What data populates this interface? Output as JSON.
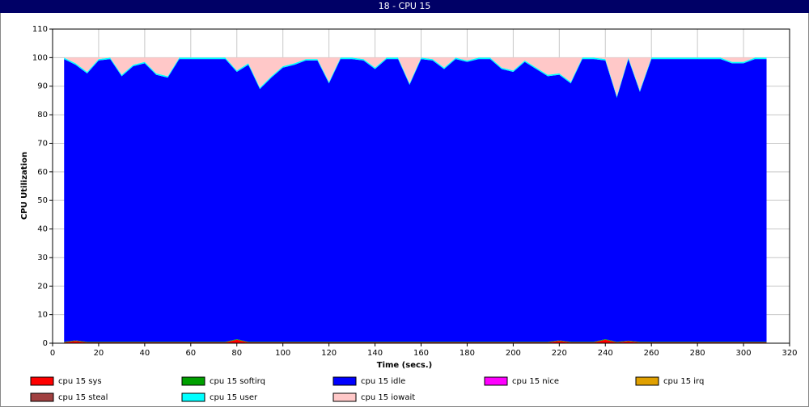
{
  "chart_data": {
    "type": "stacked_area",
    "title": "18 - CPU 15",
    "x_label": "Time (secs.)",
    "y_label": "CPU Utilization",
    "xlim": [
      0,
      320
    ],
    "xticks": [
      0,
      20,
      40,
      60,
      80,
      100,
      120,
      140,
      160,
      180,
      200,
      220,
      240,
      260,
      280,
      300,
      320
    ],
    "ylim": [
      0,
      110
    ],
    "yticks": [
      0,
      10,
      20,
      30,
      40,
      50,
      60,
      70,
      80,
      90,
      100,
      110
    ],
    "grid": true,
    "x": [
      5,
      10,
      15,
      20,
      25,
      30,
      35,
      40,
      45,
      50,
      55,
      60,
      65,
      70,
      75,
      80,
      85,
      90,
      95,
      100,
      105,
      110,
      115,
      120,
      125,
      130,
      135,
      140,
      145,
      150,
      155,
      160,
      165,
      170,
      175,
      180,
      185,
      190,
      195,
      200,
      205,
      210,
      215,
      220,
      225,
      230,
      235,
      240,
      245,
      250,
      255,
      260,
      265,
      270,
      275,
      280,
      285,
      290,
      295,
      300,
      305,
      310
    ],
    "series": [
      {
        "name": "cpu 15 sys",
        "color": "#ff0000",
        "values": [
          0.3,
          0.8,
          0.3,
          0.3,
          0.3,
          0.3,
          0.3,
          0.3,
          0.3,
          0.3,
          0.3,
          0.3,
          0.3,
          0.3,
          0.3,
          1.2,
          0.3,
          0.3,
          0.3,
          0.3,
          0.3,
          0.3,
          0.3,
          0.3,
          0.3,
          0.3,
          0.3,
          0.3,
          0.3,
          0.3,
          0.3,
          0.3,
          0.3,
          0.3,
          0.3,
          0.3,
          0.3,
          0.3,
          0.3,
          0.3,
          0.3,
          0.3,
          0.3,
          0.8,
          0.3,
          0.3,
          0.3,
          1.2,
          0.3,
          0.7,
          0.3,
          0.3,
          0.3,
          0.3,
          0.3,
          0.3,
          0.3,
          0.3,
          0.3,
          0.3,
          0.3,
          0.3
        ]
      },
      {
        "name": "cpu 15 softirq",
        "color": "#00a000",
        "values": [
          0.2,
          0.2,
          0.2,
          0.2,
          0.2,
          0.2,
          0.2,
          0.2,
          0.2,
          0.2,
          0.2,
          0.2,
          0.2,
          0.2,
          0.2,
          0.2,
          0.2,
          0.2,
          0.2,
          0.2,
          0.2,
          0.2,
          0.2,
          0.2,
          0.2,
          0.2,
          0.2,
          0.2,
          0.2,
          0.2,
          0.2,
          0.2,
          0.2,
          0.2,
          0.2,
          0.2,
          0.2,
          0.2,
          0.2,
          0.2,
          0.2,
          0.2,
          0.2,
          0.2,
          0.2,
          0.2,
          0.2,
          0.2,
          0.2,
          0.2,
          0.2,
          0.2,
          0.2,
          0.2,
          0.2,
          0.2,
          0.2,
          0.2,
          0.2,
          0.2,
          0.2,
          0.2
        ]
      },
      {
        "name": "cpu 15 idle",
        "color": "#0000ff",
        "values": [
          99.0,
          96.5,
          94.0,
          98.5,
          99.0,
          93.0,
          96.5,
          97.5,
          93.5,
          92.5,
          99.0,
          99.0,
          99.0,
          99.0,
          99.0,
          93.6,
          97.0,
          88.5,
          92.5,
          96.0,
          97.0,
          98.5,
          98.5,
          90.5,
          99.0,
          99.0,
          98.5,
          95.5,
          99.0,
          99.0,
          90.0,
          99.0,
          98.5,
          95.5,
          99.0,
          98.0,
          99.0,
          99.0,
          95.5,
          94.5,
          98.0,
          95.5,
          93.0,
          93.0,
          90.5,
          99.0,
          99.0,
          97.6,
          85.5,
          98.6,
          87.5,
          99.0,
          99.0,
          99.0,
          99.0,
          99.0,
          99.0,
          99.0,
          97.5,
          97.5,
          99.0,
          99.0
        ]
      },
      {
        "name": "cpu 15 nice",
        "color": "#ff00ff",
        "values": [
          0,
          0,
          0,
          0,
          0,
          0,
          0,
          0,
          0,
          0,
          0,
          0,
          0,
          0,
          0,
          0,
          0,
          0,
          0,
          0,
          0,
          0,
          0,
          0,
          0,
          0,
          0,
          0,
          0,
          0,
          0,
          0,
          0,
          0,
          0,
          0,
          0,
          0,
          0,
          0,
          0,
          0,
          0,
          0,
          0,
          0,
          0,
          0,
          0,
          0,
          0,
          0,
          0,
          0,
          0,
          0,
          0,
          0,
          0,
          0,
          0,
          0
        ]
      },
      {
        "name": "cpu 15 irq",
        "color": "#e0a000",
        "values": [
          0,
          0,
          0,
          0,
          0,
          0,
          0,
          0,
          0,
          0,
          0,
          0,
          0,
          0,
          0,
          0,
          0,
          0,
          0,
          0,
          0,
          0,
          0,
          0,
          0,
          0,
          0,
          0,
          0,
          0,
          0,
          0,
          0,
          0,
          0,
          0,
          0,
          0,
          0,
          0,
          0,
          0,
          0,
          0,
          0,
          0,
          0,
          0,
          0,
          0,
          0,
          0,
          0,
          0,
          0,
          0,
          0,
          0,
          0,
          0,
          0,
          0
        ]
      },
      {
        "name": "cpu 15 steal",
        "color": "#a04040",
        "values": [
          0,
          0,
          0,
          0,
          0,
          0,
          0,
          0,
          0,
          0,
          0,
          0,
          0,
          0,
          0,
          0,
          0,
          0,
          0,
          0,
          0,
          0,
          0,
          0,
          0,
          0,
          0,
          0,
          0,
          0,
          0,
          0,
          0,
          0,
          0,
          0,
          0,
          0,
          0,
          0,
          0,
          0,
          0,
          0,
          0,
          0,
          0,
          0,
          0,
          0,
          0,
          0,
          0,
          0,
          0,
          0,
          0,
          0,
          0,
          0,
          0,
          0
        ]
      },
      {
        "name": "cpu 15 user",
        "color": "#00ffff",
        "values": [
          0.5,
          0.5,
          0.5,
          0.5,
          0.5,
          0.5,
          0.5,
          0.5,
          0.5,
          0.5,
          0.5,
          0.5,
          0.5,
          0.5,
          0.5,
          0.5,
          0.5,
          0.5,
          0.5,
          0.5,
          0.5,
          0.5,
          0.5,
          0.5,
          0.5,
          0.5,
          0.5,
          0.5,
          0.5,
          0.5,
          0.5,
          0.5,
          0.5,
          0.5,
          0.5,
          0.5,
          0.5,
          0.5,
          0.5,
          0.5,
          0.5,
          0.5,
          0.5,
          0.5,
          0.5,
          0.5,
          0.5,
          0.5,
          0.5,
          0.5,
          0.5,
          0.5,
          0.5,
          0.5,
          0.5,
          0.5,
          0.5,
          0.5,
          0.5,
          0.5,
          0.5,
          0.5
        ]
      },
      {
        "name": "cpu 15 iowait",
        "color": "#ffc8c8",
        "values": [
          0,
          2,
          5,
          0.5,
          0,
          6,
          2.5,
          1.5,
          5.5,
          6.5,
          0,
          0,
          0,
          0,
          0,
          4.5,
          2,
          10.5,
          6.5,
          3,
          2,
          0.5,
          0.5,
          8.5,
          0,
          0,
          0.5,
          3.5,
          0,
          0,
          9,
          0,
          0.5,
          3.5,
          0,
          1,
          0,
          0,
          3.5,
          4.5,
          1,
          3.5,
          6,
          5.5,
          8.5,
          0,
          0,
          0.5,
          13.5,
          0,
          11.5,
          0,
          0,
          0,
          0,
          0,
          0,
          0,
          1.5,
          1.5,
          0,
          0
        ]
      }
    ]
  }
}
